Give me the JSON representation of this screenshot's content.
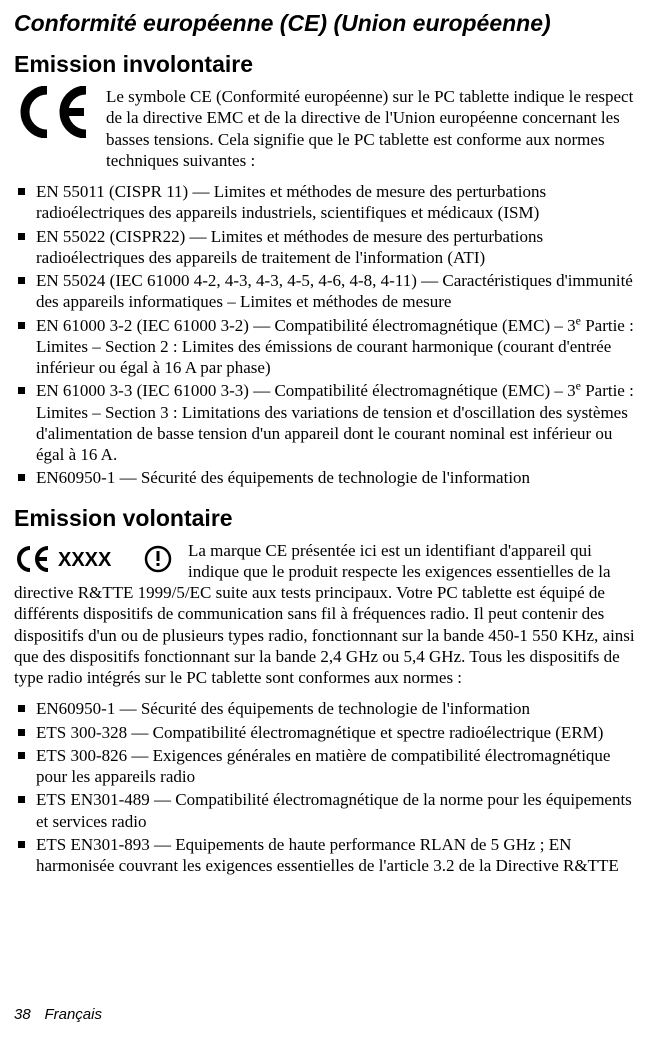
{
  "title": "Conformité européenne (CE) (Union européenne)",
  "involuntary": {
    "heading": "Emission involontaire",
    "intro": "Le symbole CE (Conformité européenne) sur le PC tablette indique le respect de la directive EMC et de la directive de l'Union européenne concernant les basses tensions. Cela signifie que le PC tablette est conforme aux normes techniques suivantes :",
    "items": [
      "EN 55011 (CISPR 11) — Limites et méthodes de mesure des perturbations radioélectriques des appareils industriels, scientifiques et médicaux (ISM)",
      "EN 55022 (CISPR22) — Limites et méthodes de mesure des perturbations radioélectriques des appareils de traitement de l'information (ATI)",
      "EN 55024 (IEC 61000 4-2, 4-3, 4-3, 4-5, 4-6, 4-8, 4-11) — Caractéristiques d'immunité des appareils informatiques – Limites et méthodes de mesure",
      "EN 61000 3-2 (IEC 61000 3-2) — Compatibilité électromagnétique (EMC) – 3<span class=\"sup\">e</span> Partie : Limites – Section 2 : Limites des émissions de courant harmonique (courant d'entrée inférieur ou égal à 16 A par phase)",
      "EN 61000 3-3 (IEC 61000 3-3) — Compatibilité électromagnétique (EMC) – 3<span class=\"sup\">e</span> Partie : Limites – Section 3 : Limitations des variations de tension et d'oscillation des systèmes d'alimentation de basse tension d'un appareil dont le courant nominal est inférieur ou égal à 16 A.",
      "EN60950-1 — Sécurité des équipements de technologie de l'information"
    ]
  },
  "voluntary": {
    "heading": "Emission volontaire",
    "ce_label": "XXXX",
    "intro": "La marque CE présentée ici est un identifiant d'appareil qui indique que le produit respecte les exigences essentielles de la directive R&TTE 1999/5/EC suite aux tests principaux. Votre PC tablette est équipé de différents dispositifs de communication sans fil à fréquences radio. Il peut contenir des dispositifs d'un ou de plusieurs types radio, fonctionnant sur la bande 450-1 550 KHz, ainsi que des dispositifs fonctionnant sur la bande 2,4 GHz ou 5,4 GHz. Tous les dispositifs de type radio intégrés sur le PC tablette sont conformes aux normes :",
    "items": [
      "EN60950-1 — Sécurité des équipements de technologie de l'information",
      "ETS 300-328 — Compatibilité électromagnétique et spectre radioélectrique (ERM)",
      "ETS 300-826 — Exigences générales en matière de compatibilité électromagnétique pour les appareils radio",
      "ETS EN301-489 — Compatibilité électromagnétique de la norme pour les équipements et services radio",
      "ETS EN301-893 — Equipements de haute performance RLAN de 5 GHz ; EN harmonisée couvrant les exigences essentielles de l'article 3.2 de la Directive R&TTE"
    ]
  },
  "footer": {
    "page": "38",
    "language": "Français"
  },
  "style": {
    "background": "#ffffff",
    "text": "#000000",
    "title_fontsize": 23,
    "body_fontsize": 17,
    "footer_fontsize": 15
  }
}
